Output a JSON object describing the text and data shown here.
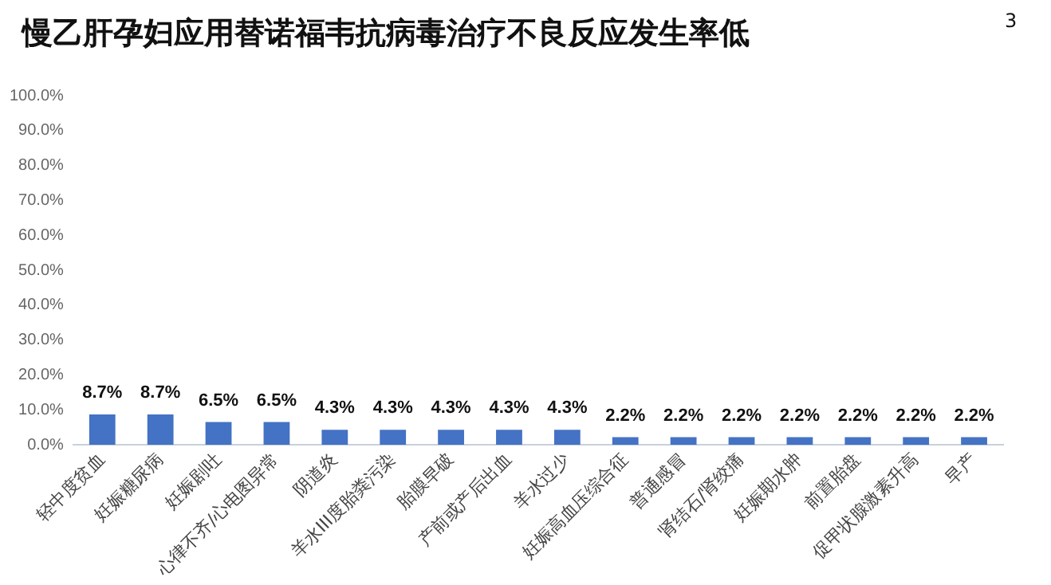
{
  "chart_data": {
    "type": "bar",
    "title": "慢乙肝孕妇应用替诺福韦抗病毒治疗不良反应发生率低",
    "annotations": [
      "3"
    ],
    "categories": [
      "轻中度贫血",
      "妊娠糖尿病",
      "妊娠剧吐",
      "心律不齐/心电图异常",
      "阴道炎",
      "羊水III度胎粪污染",
      "胎膜早破",
      "产前或产后出血",
      "羊水过少",
      "妊娠高血压综合征",
      "普通感冒",
      "肾结石/肾绞痛",
      "妊娠期水肿",
      "前置胎盘",
      "促甲状腺激素升高",
      "早产"
    ],
    "values": [
      8.7,
      8.7,
      6.5,
      6.5,
      4.3,
      4.3,
      4.3,
      4.3,
      4.3,
      2.2,
      2.2,
      2.2,
      2.2,
      2.2,
      2.2,
      2.2
    ],
    "value_labels": [
      "8.7%",
      "8.7%",
      "6.5%",
      "6.5%",
      "4.3%",
      "4.3%",
      "4.3%",
      "4.3%",
      "4.3%",
      "2.2%",
      "2.2%",
      "2.2%",
      "2.2%",
      "2.2%",
      "2.2%",
      "2.2%"
    ],
    "color": "#4472c4",
    "ylim": [
      0,
      100
    ],
    "yticks": [
      {
        "value": 0,
        "label": "0.0%"
      },
      {
        "value": 10,
        "label": "10.0%"
      },
      {
        "value": 20,
        "label": "20.0%"
      },
      {
        "value": 30,
        "label": "30.0%"
      },
      {
        "value": 40,
        "label": "40.0%"
      },
      {
        "value": 50,
        "label": "50.0%"
      },
      {
        "value": 60,
        "label": "60.0%"
      },
      {
        "value": 70,
        "label": "70.0%"
      },
      {
        "value": 80,
        "label": "80.0%"
      },
      {
        "value": 90,
        "label": "90.0%"
      },
      {
        "value": 100,
        "label": "100.0%"
      }
    ],
    "grid": false,
    "legend": false
  }
}
